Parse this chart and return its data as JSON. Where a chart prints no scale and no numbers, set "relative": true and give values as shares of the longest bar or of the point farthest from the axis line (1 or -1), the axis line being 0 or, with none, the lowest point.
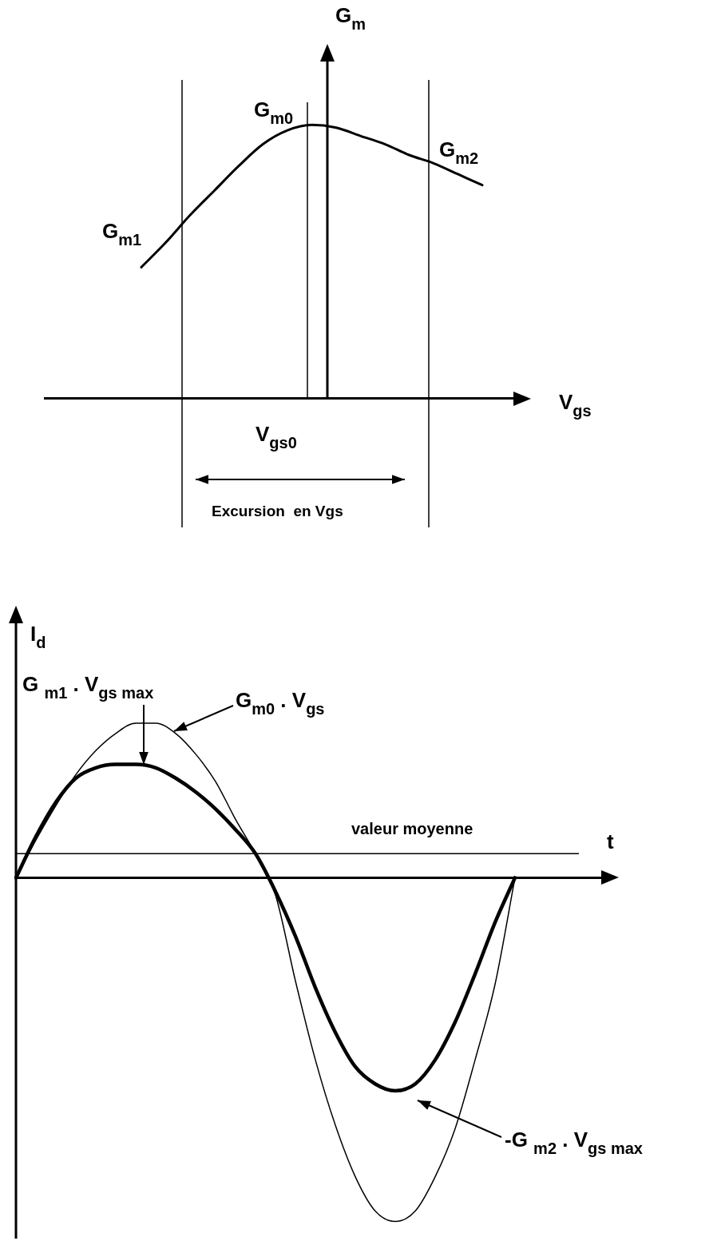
{
  "chart_data": [
    {
      "type": "line",
      "relative": true,
      "xlabel": "V$_{gs}$",
      "ylabel": "G$_{m}$",
      "legend": false,
      "marker": "none",
      "categories": [
        null,
        null,
        null,
        null,
        null,
        null,
        null,
        null,
        null,
        null,
        null,
        null,
        null,
        null,
        null,
        null,
        null,
        null,
        null,
        null,
        null
      ],
      "series": [
        {
          "color": "#000000",
          "values": [
            null,
            null,
            null,
            null,
            0.48,
            0.57,
            0.67,
            0.76,
            0.85,
            0.93,
            0.98,
            1.0,
            0.99,
            0.96,
            0.93,
            0.89,
            0.86,
            0.82,
            0.78,
            null,
            null
          ]
        }
      ],
      "annotations": [
        "G$_{m0}$",
        "G$_{m1}$",
        "G$_{m2}$",
        "V$_{gs0}$",
        "Excursion  en Vgs"
      ]
    },
    {
      "type": "line",
      "relative": true,
      "xlabel": "t",
      "ylabel": "I$_{d}$",
      "legend": false,
      "marker": "none",
      "categories": [
        null,
        null,
        null,
        null,
        null,
        null,
        null,
        null,
        null,
        null,
        null,
        null,
        null,
        null,
        null,
        null,
        null,
        null,
        null,
        null,
        null,
        null,
        null,
        null,
        null,
        null,
        null,
        null,
        null,
        null,
        null
      ],
      "series": [
        {
          "color": "#000000",
          "values": [
            0,
            0.11,
            0.21,
            0.3,
            0.37,
            0.42,
            0.45,
            0.45,
            0.42,
            0.36,
            0.28,
            0.17,
            0.07,
            -0.05,
            -0.3,
            -0.53,
            -0.72,
            -0.87,
            -0.97,
            -1.0,
            -0.97,
            -0.87,
            -0.73,
            -0.53,
            -0.31,
            0,
            null,
            null,
            null,
            null,
            null
          ]
        },
        {
          "color": "#000000",
          "values": [
            0,
            0.12,
            0.22,
            0.29,
            0.32,
            0.33,
            0.33,
            0.32,
            0.29,
            0.25,
            0.2,
            0.14,
            0.07,
            -0.04,
            -0.17,
            -0.32,
            -0.45,
            -0.55,
            -0.6,
            -0.62,
            -0.6,
            -0.53,
            -0.42,
            -0.28,
            -0.13,
            0,
            null,
            null,
            null,
            null,
            null
          ]
        }
      ],
      "ref_lines": [
        {
          "axis": "y",
          "value": 0.07,
          "label": "valeur moyenne"
        }
      ],
      "annotations": [
        "G $_{m1}$ . V$_{gs max}$",
        "G$_{m0}$ . V$_{gs}$",
        "-G $_{m2}$ . V$_{gs max}$"
      ]
    }
  ]
}
